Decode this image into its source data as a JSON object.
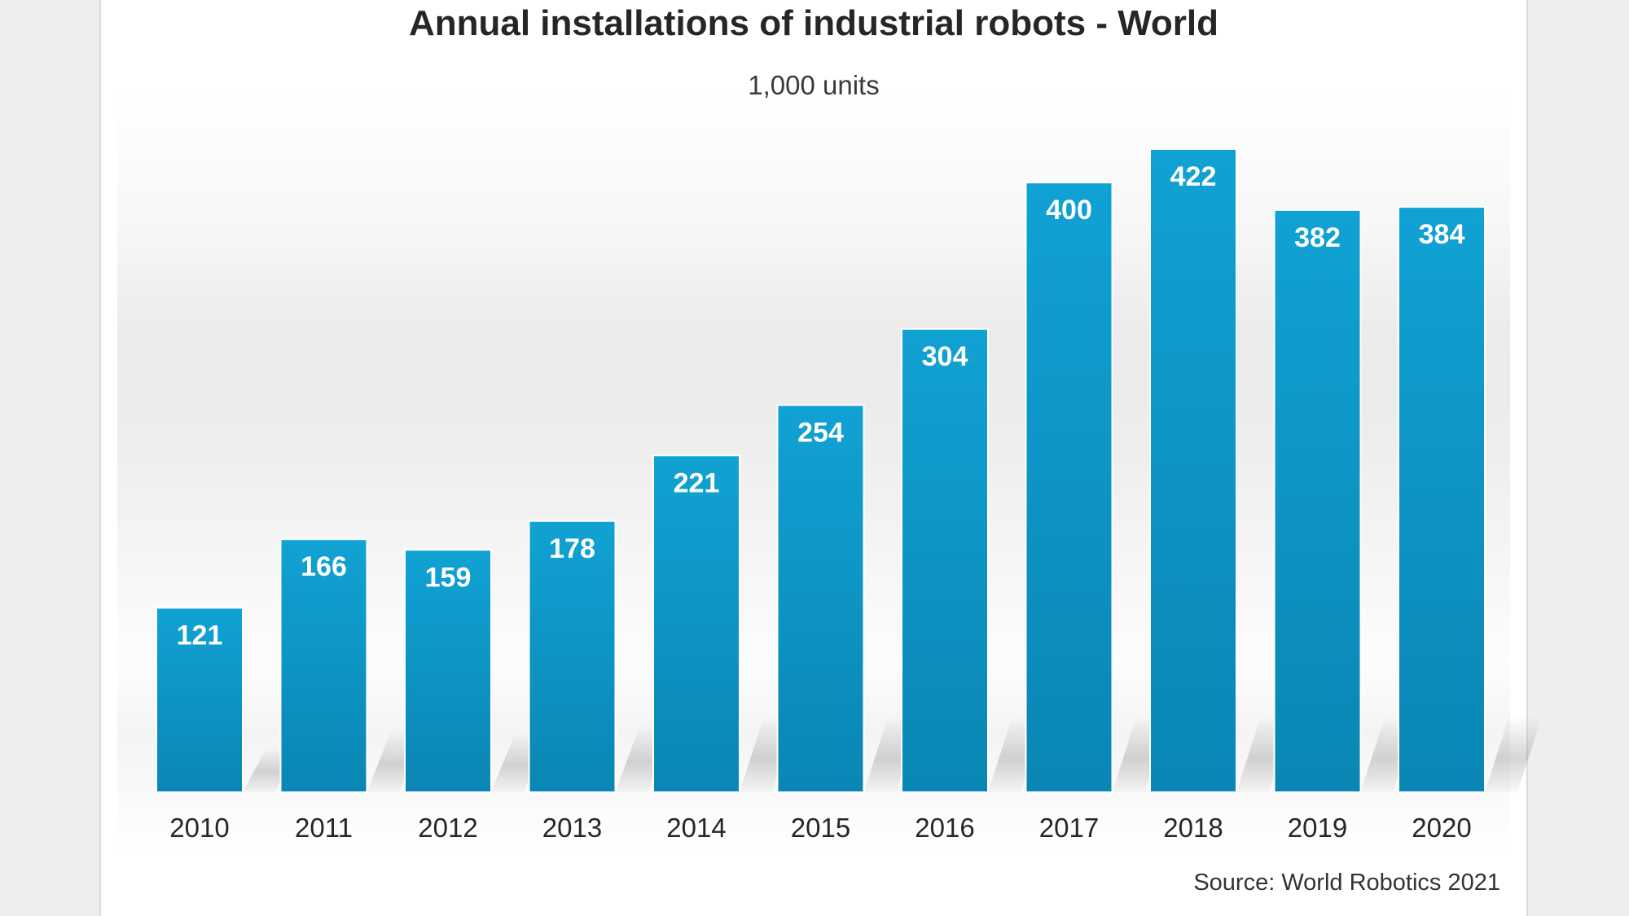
{
  "chart_data": {
    "type": "bar",
    "title": "Annual installations of industrial robots - World",
    "subtitle": "1,000 units",
    "source": "Source: World Robotics 2021",
    "categories": [
      "2010",
      "2011",
      "2012",
      "2013",
      "2014",
      "2015",
      "2016",
      "2017",
      "2018",
      "2019",
      "2020"
    ],
    "values": [
      121,
      166,
      159,
      178,
      221,
      254,
      304,
      400,
      422,
      382,
      384
    ],
    "ylim": [
      0,
      422
    ],
    "grid": false,
    "legend": "none",
    "colors": {
      "bar_top": "#10a2d3",
      "bar_bottom": "#0a86b4",
      "label": "#ffffff"
    }
  }
}
